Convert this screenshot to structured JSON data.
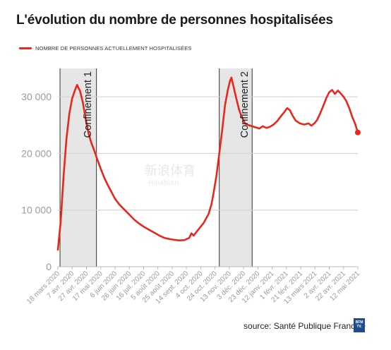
{
  "header": {
    "title": "L'évolution du nombre de personnes hospitalisées"
  },
  "legend": {
    "label": "NOMBRE DE PERSONNES ACTUELLEMENT HOSPITALISÉES",
    "color": "#e8271c"
  },
  "watermark": {
    "text": "新浪体育",
    "sub": "Hinabian"
  },
  "footer": {
    "source": "source: Santé Publique France",
    "bullet": "•",
    "logo": "BFM TV."
  },
  "chart_data": {
    "type": "line",
    "title": "",
    "xlabel": "",
    "ylabel": "",
    "ylim": [
      0,
      35000
    ],
    "grid": "horizontal",
    "x_start": "2020-03-18",
    "x_end": "2021-05-12",
    "x_ticks": [
      "18 mars 2020",
      "7 avr. 2020",
      "27 avr. 2020",
      "17 mai 2020",
      "6 juin 2020",
      "26 juin 2020",
      "16 juil. 2020",
      "5 août 2020",
      "25 août 2020",
      "14 sept. 2020",
      "4 oct. 2020",
      "24 oct. 2020",
      "13 nov. 2020",
      "3 déc. 2020",
      "23 déc. 2020",
      "12 janv. 2021",
      "1 févr. 2021",
      "21 févr. 2021",
      "13 mars 2021",
      "2 avr. 2021",
      "22 avr. 2021",
      "12 mai 2021"
    ],
    "y_ticks": [
      0,
      10000,
      20000,
      30000
    ],
    "y_tick_labels": [
      "0",
      "10 000",
      "20 000",
      "30 000"
    ],
    "series": [
      {
        "name": "NOMBRE DE PERSONNES ACTUELLEMENT HOSPITALISÉES",
        "color": "#e8271c",
        "points": [
          [
            "2020-03-18",
            3000
          ],
          [
            "2020-03-22",
            8000
          ],
          [
            "2020-03-26",
            16000
          ],
          [
            "2020-03-30",
            22500
          ],
          [
            "2020-04-03",
            27000
          ],
          [
            "2020-04-07",
            29700
          ],
          [
            "2020-04-11",
            31200
          ],
          [
            "2020-04-14",
            32100
          ],
          [
            "2020-04-18",
            31000
          ],
          [
            "2020-04-22",
            29000
          ],
          [
            "2020-04-26",
            26000
          ],
          [
            "2020-04-30",
            23500
          ],
          [
            "2020-05-04",
            21800
          ],
          [
            "2020-05-08",
            20500
          ],
          [
            "2020-05-12",
            19000
          ],
          [
            "2020-05-17",
            17300
          ],
          [
            "2020-05-22",
            15700
          ],
          [
            "2020-05-27",
            14400
          ],
          [
            "2020-06-01",
            13200
          ],
          [
            "2020-06-06",
            12000
          ],
          [
            "2020-06-12",
            11000
          ],
          [
            "2020-06-19",
            10100
          ],
          [
            "2020-06-26",
            9200
          ],
          [
            "2020-07-03",
            8300
          ],
          [
            "2020-07-10",
            7600
          ],
          [
            "2020-07-17",
            7000
          ],
          [
            "2020-07-24",
            6500
          ],
          [
            "2020-07-31",
            6000
          ],
          [
            "2020-08-07",
            5500
          ],
          [
            "2020-08-14",
            5100
          ],
          [
            "2020-08-21",
            4900
          ],
          [
            "2020-08-28",
            4750
          ],
          [
            "2020-09-04",
            4650
          ],
          [
            "2020-09-11",
            4700
          ],
          [
            "2020-09-18",
            5100
          ],
          [
            "2020-09-21",
            5900
          ],
          [
            "2020-09-24",
            5500
          ],
          [
            "2020-10-01",
            6600
          ],
          [
            "2020-10-08",
            7700
          ],
          [
            "2020-10-15",
            9300
          ],
          [
            "2020-10-19",
            11000
          ],
          [
            "2020-10-22",
            13000
          ],
          [
            "2020-10-26",
            16000
          ],
          [
            "2020-10-30",
            20000
          ],
          [
            "2020-11-03",
            24000
          ],
          [
            "2020-11-07",
            28500
          ],
          [
            "2020-11-11",
            31200
          ],
          [
            "2020-11-14",
            32800
          ],
          [
            "2020-11-16",
            33400
          ],
          [
            "2020-11-19",
            31800
          ],
          [
            "2020-11-23",
            29600
          ],
          [
            "2020-11-27",
            27600
          ],
          [
            "2020-12-01",
            26300
          ],
          [
            "2020-12-05",
            25300
          ],
          [
            "2020-12-10",
            25000
          ],
          [
            "2020-12-15",
            24800
          ],
          [
            "2020-12-20",
            24600
          ],
          [
            "2020-12-25",
            24400
          ],
          [
            "2020-12-30",
            24800
          ],
          [
            "2021-01-04",
            24500
          ],
          [
            "2021-01-09",
            24700
          ],
          [
            "2021-01-14",
            25100
          ],
          [
            "2021-01-19",
            25700
          ],
          [
            "2021-01-24",
            26500
          ],
          [
            "2021-01-29",
            27300
          ],
          [
            "2021-02-02",
            28000
          ],
          [
            "2021-02-06",
            27600
          ],
          [
            "2021-02-10",
            26600
          ],
          [
            "2021-02-14",
            25800
          ],
          [
            "2021-02-20",
            25300
          ],
          [
            "2021-02-26",
            25100
          ],
          [
            "2021-03-04",
            25300
          ],
          [
            "2021-03-08",
            24900
          ],
          [
            "2021-03-12",
            25300
          ],
          [
            "2021-03-16",
            25900
          ],
          [
            "2021-03-20",
            27000
          ],
          [
            "2021-03-24",
            28200
          ],
          [
            "2021-03-29",
            29800
          ],
          [
            "2021-04-02",
            30800
          ],
          [
            "2021-04-06",
            31200
          ],
          [
            "2021-04-10",
            30500
          ],
          [
            "2021-04-14",
            31100
          ],
          [
            "2021-04-18",
            30600
          ],
          [
            "2021-04-22",
            30000
          ],
          [
            "2021-04-26",
            29200
          ],
          [
            "2021-04-30",
            28000
          ],
          [
            "2021-05-04",
            26500
          ],
          [
            "2021-05-08",
            25300
          ],
          [
            "2021-05-12",
            23700
          ]
        ]
      }
    ],
    "annotations": [
      {
        "label": "Confinement 1",
        "start": "2020-03-21",
        "end": "2020-05-11",
        "fill": "#e6e6e6"
      },
      {
        "label": "Confinement 2",
        "start": "2020-10-30",
        "end": "2020-12-15",
        "fill": "#e6e6e6"
      }
    ]
  }
}
